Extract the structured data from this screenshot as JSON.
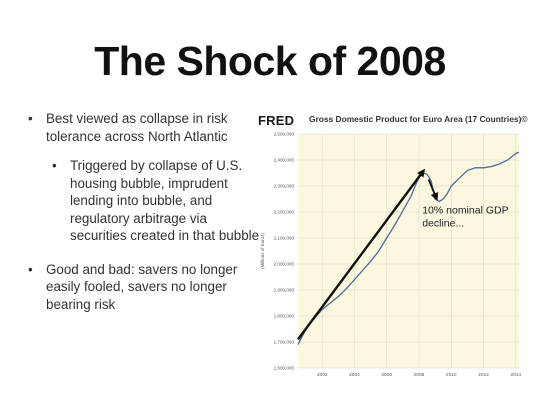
{
  "slide": {
    "title": "The Shock of 2008",
    "bullets": [
      {
        "text": "Best viewed as collapse in risk tolerance across North Atlantic"
      },
      {
        "text": "Triggered by collapse of U.S. housing bubble, imprudent lending into bubble, and regulatory arbitrage via securities created in that bubble"
      },
      {
        "text": "Good and bad: savers no longer easily fooled, savers no longer bearing risk"
      }
    ],
    "bullet_glyph": "•"
  },
  "fred_logo": "FRED",
  "chart_data": {
    "type": "line",
    "title": "Gross Domestic Product for Euro Area (17 Countries)©",
    "ylabel": "(Millions of Euros)",
    "xlabel": "",
    "xlim": [
      2000.5,
      2014.2
    ],
    "ylim": [
      1600000,
      2500000
    ],
    "x_ticks": [
      2002,
      2004,
      2006,
      2008,
      2010,
      2012,
      2014
    ],
    "x_tick_labels": [
      "2002",
      "2004",
      "2006",
      "2008",
      "2010",
      "2012",
      "2014"
    ],
    "y_ticks": [
      1600000,
      1700000,
      1800000,
      1900000,
      2000000,
      2100000,
      2200000,
      2300000,
      2400000,
      2500000
    ],
    "y_tick_labels": [
      "1,600,000",
      "1,700,000",
      "1,800,000",
      "1,900,000",
      "2,000,000",
      "2,100,000",
      "2,200,000",
      "2,300,000",
      "2,400,000",
      "2,500,000"
    ],
    "grid": true,
    "background": "#fbf8df",
    "line_color": "#4a6c9a",
    "series": [
      {
        "x": [
          2000.5,
          2001.0,
          2001.5,
          2002.0,
          2002.5,
          2003.0,
          2003.5,
          2004.0,
          2004.5,
          2005.0,
          2005.5,
          2006.0,
          2006.5,
          2007.0,
          2007.5,
          2008.0,
          2008.25,
          2008.5,
          2008.75,
          2009.0,
          2009.25,
          2009.5,
          2009.75,
          2010.0,
          2010.5,
          2011.0,
          2011.5,
          2012.0,
          2012.5,
          2013.0,
          2013.5,
          2014.0,
          2014.2
        ],
        "y": [
          1690000,
          1750000,
          1790000,
          1825000,
          1850000,
          1875000,
          1905000,
          1940000,
          1975000,
          2010000,
          2050000,
          2100000,
          2150000,
          2205000,
          2260000,
          2335000,
          2350000,
          2345000,
          2320000,
          2250000,
          2240000,
          2250000,
          2270000,
          2300000,
          2330000,
          2360000,
          2370000,
          2370000,
          2375000,
          2385000,
          2400000,
          2425000,
          2430000
        ]
      }
    ],
    "annotations": [
      {
        "type": "arrow",
        "from": {
          "x": 2000.5,
          "y": 1710000
        },
        "to": {
          "x": 2008.3,
          "y": 2360000
        }
      },
      {
        "type": "arrow",
        "from": {
          "x": 2008.6,
          "y": 2325000
        },
        "to": {
          "x": 2009.1,
          "y": 2250000
        }
      },
      {
        "type": "text",
        "text": "10% nominal GDP decline...",
        "x": 2008.2,
        "y": 2195000
      }
    ]
  }
}
